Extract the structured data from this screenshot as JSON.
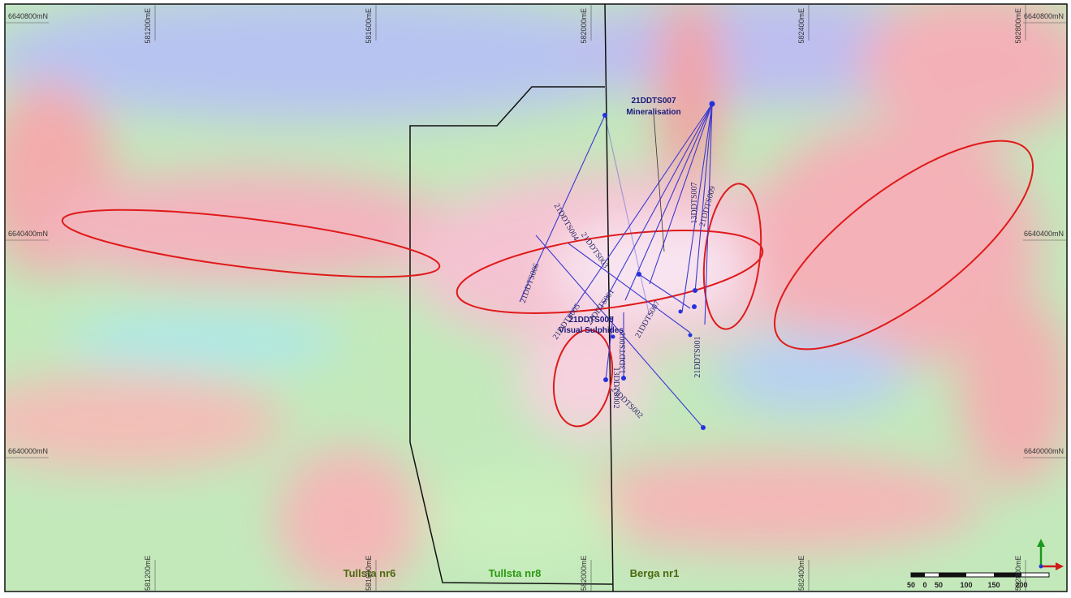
{
  "grid": {
    "northings": [
      "6640800mN",
      "6640400mN",
      "6640000mN"
    ],
    "eastings": [
      "581200mE",
      "581600mE",
      "582000mE",
      "582400mE",
      "582800mE"
    ]
  },
  "tenements": [
    "Tullsta nr6",
    "Tullsta nr8",
    "Berga nr1"
  ],
  "annotations": [
    {
      "title": "21DDTS007",
      "subtitle": "Mineralisation"
    },
    {
      "title": "21DDTS008",
      "subtitle": "Visual Sulphides"
    }
  ],
  "drill_holes": [
    "21DDTS006",
    "21DDTS004",
    "21DDTS003",
    "21DDTS005",
    "21DDTS001",
    "21DDTS007",
    "21DDTS009",
    "13DDTS001",
    "13DDTS002",
    "21DDTS002",
    "21DDTS001",
    "13DDTS007"
  ],
  "scale_bar": {
    "labels": [
      50,
      0,
      50,
      100,
      150,
      200
    ]
  }
}
